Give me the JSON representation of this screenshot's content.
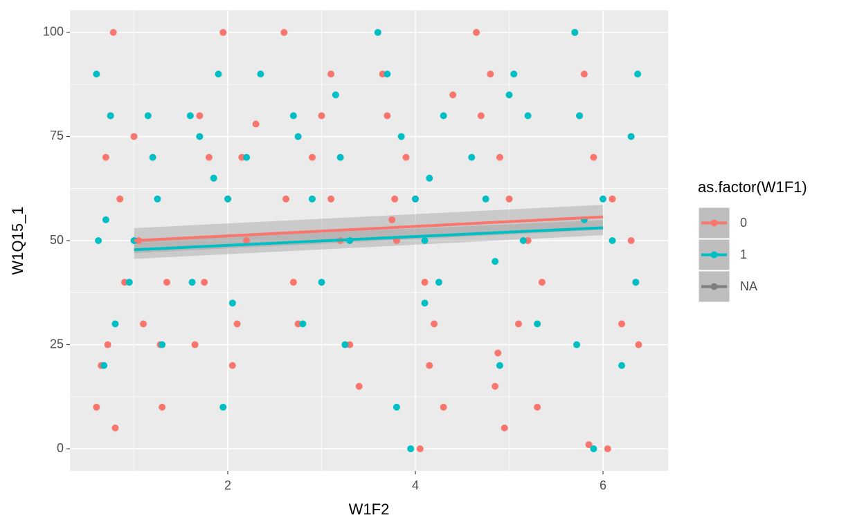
{
  "chart_data": {
    "type": "scatter",
    "x_label": "W1F2",
    "y_label": "W1Q15_1",
    "xlim": [
      0.317,
      6.694
    ],
    "ylim": [
      -5.3,
      105.3
    ],
    "xticks": [
      2,
      4,
      6
    ],
    "yticks": [
      0,
      25,
      50,
      75,
      100
    ],
    "grid": true,
    "legend_title": "as.factor(W1F1)",
    "legend_position": "right",
    "series": [
      {
        "name": "0",
        "color": "#F8766D",
        "x": [
          0.78,
          1.0,
          0.7,
          0.85,
          1.05,
          0.75,
          0.9,
          1.1,
          0.65,
          0.72,
          0.6,
          0.8,
          1.3,
          1.35,
          1.28,
          1.95,
          2.0,
          1.7,
          1.8,
          2.2,
          2.1,
          1.65,
          2.3,
          2.15,
          1.75,
          2.05,
          2.6,
          2.62,
          2.7,
          3.1,
          3.0,
          2.9,
          3.2,
          3.3,
          2.75,
          3.1,
          3.4,
          3.65,
          3.7,
          3.9,
          4.0,
          3.8,
          4.1,
          4.2,
          4.3,
          4.15,
          4.05,
          3.75,
          4.4,
          4.65,
          4.8,
          4.7,
          4.9,
          5.0,
          5.2,
          5.35,
          4.85,
          5.1,
          5.3,
          4.95,
          5.7,
          5.8,
          5.75,
          5.9,
          6.1,
          6.3,
          6.35,
          6.2,
          6.05,
          5.85,
          6.38,
          4.88,
          3.78
        ],
        "values": [
          100,
          75,
          70,
          60,
          50,
          80,
          40,
          30,
          20,
          25,
          10,
          5,
          10,
          40,
          25,
          100,
          60,
          80,
          70,
          50,
          30,
          25,
          78,
          70,
          40,
          20,
          100,
          60,
          40,
          90,
          80,
          70,
          50,
          25,
          30,
          60,
          15,
          90,
          80,
          70,
          60,
          50,
          40,
          30,
          10,
          20,
          0,
          55,
          85,
          100,
          90,
          80,
          70,
          60,
          50,
          40,
          15,
          30,
          10,
          5,
          100,
          90,
          80,
          70,
          60,
          50,
          40,
          30,
          0,
          1,
          25,
          23,
          60
        ],
        "fit": {
          "x": [
            1,
            6
          ],
          "values": [
            50,
            55.7
          ],
          "lower": [
            47,
            52.6
          ],
          "upper": [
            53,
            58.6
          ]
        }
      },
      {
        "name": "1",
        "color": "#00BFC4",
        "x": [
          0.6,
          0.62,
          0.7,
          0.75,
          0.8,
          0.68,
          0.95,
          1.0,
          1.2,
          1.15,
          1.25,
          1.3,
          1.6,
          1.7,
          1.9,
          2.0,
          2.05,
          1.85,
          2.2,
          2.35,
          1.62,
          1.95,
          2.7,
          2.75,
          2.9,
          3.15,
          3.2,
          3.3,
          3.0,
          2.8,
          3.25,
          3.6,
          3.7,
          3.85,
          4.0,
          4.1,
          3.8,
          3.95,
          4.25,
          4.3,
          4.15,
          4.1,
          4.6,
          4.75,
          4.85,
          5.0,
          5.05,
          5.2,
          5.15,
          4.9,
          5.3,
          5.7,
          5.75,
          5.8,
          6.0,
          6.1,
          6.3,
          6.35,
          6.2,
          5.9,
          6.37,
          5.72
        ],
        "values": [
          90,
          50,
          55,
          80,
          30,
          20,
          40,
          50,
          70,
          80,
          60,
          25,
          80,
          75,
          90,
          60,
          35,
          65,
          70,
          90,
          40,
          10,
          80,
          75,
          60,
          85,
          70,
          50,
          40,
          30,
          25,
          100,
          90,
          75,
          60,
          50,
          10,
          0,
          40,
          80,
          65,
          35,
          70,
          60,
          45,
          85,
          90,
          80,
          50,
          20,
          30,
          100,
          80,
          55,
          60,
          50,
          75,
          40,
          20,
          0,
          90,
          25
        ],
        "fit": {
          "x": [
            1,
            6
          ],
          "values": [
            47.8,
            53.1
          ],
          "lower": [
            45.6,
            51.3
          ],
          "upper": [
            50,
            54.9
          ]
        }
      },
      {
        "name": "NA",
        "color": "#7F7F7F",
        "x": [],
        "values": []
      }
    ]
  }
}
